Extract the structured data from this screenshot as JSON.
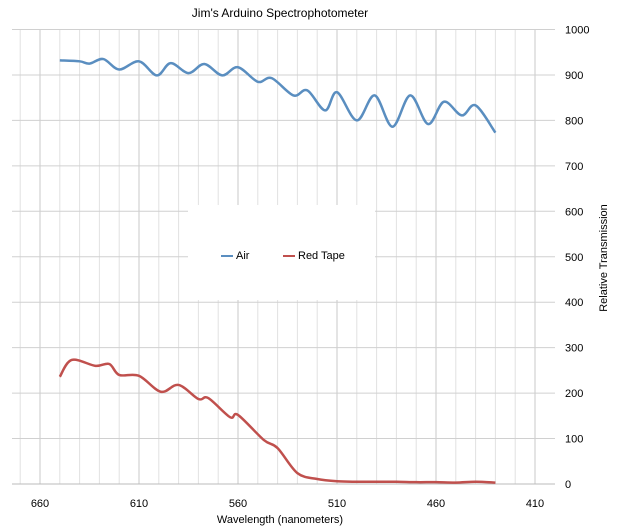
{
  "chart_data": {
    "type": "line",
    "title": "Jim's Arduino Spectrophotometer",
    "xlabel": "Wavelength (nanometers)",
    "ylabel": "Relative Transmission",
    "xlim": [
      670,
      410
    ],
    "x_reversed": true,
    "ylim": [
      0,
      1000
    ],
    "xticks": [
      660,
      610,
      560,
      510,
      460,
      410
    ],
    "yticks": [
      0,
      100,
      200,
      300,
      400,
      500,
      600,
      700,
      800,
      900,
      1000
    ],
    "y_axis_side": "right",
    "grid": true,
    "legend_placement": "center",
    "series": [
      {
        "name": "Air",
        "color": "#5a8ec0",
        "x": [
          650,
          640,
          635,
          628,
          620,
          610,
          601,
          594,
          585,
          577,
          568,
          560,
          550,
          543,
          532,
          525,
          516,
          510,
          500,
          491,
          482,
          473,
          464,
          456,
          447,
          440,
          430
        ],
        "y": [
          932,
          930,
          925,
          935,
          912,
          930,
          899,
          926,
          904,
          924,
          899,
          917,
          885,
          893,
          855,
          866,
          822,
          862,
          800,
          855,
          786,
          855,
          792,
          841,
          811,
          833,
          773
        ]
      },
      {
        "name": "Red Tape",
        "color": "#c0504d",
        "x": [
          650,
          644,
          632,
          625,
          620,
          610,
          599,
          590,
          580,
          575,
          564,
          560,
          547,
          540,
          530,
          520,
          510,
          500,
          490,
          480,
          470,
          460,
          450,
          440,
          430
        ],
        "y": [
          236,
          273,
          260,
          264,
          240,
          238,
          203,
          218,
          187,
          189,
          147,
          152,
          97,
          79,
          24,
          11,
          6,
          5,
          5,
          5,
          4,
          4,
          3,
          5,
          3
        ]
      }
    ]
  }
}
